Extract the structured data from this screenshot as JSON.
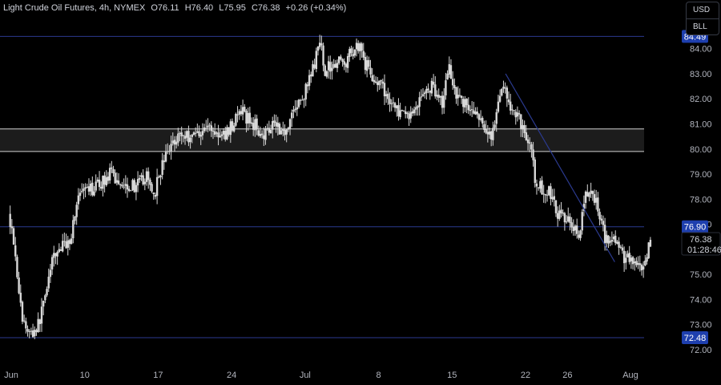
{
  "header": {
    "symbol": "Light Crude Oil Futures, 4h, NYMEX",
    "open": "O76.11",
    "high": "H76.40",
    "low": "L75.95",
    "close": "C76.38",
    "change": "+0.26 (+0.34%)"
  },
  "currency_menu": {
    "currency": "USD",
    "unit": "BLL"
  },
  "colors": {
    "background": "#000000",
    "candle": "#d8d8d8",
    "level_line": "#2b3a8f",
    "zone_border": "#d0d0d0",
    "zone_fill": "#1c1c1c",
    "label_bg": "#1e3fae",
    "axis_text": "#b2b5be"
  },
  "chart_data": {
    "type": "candlestick",
    "y_ticks": [
      "84.00",
      "83.00",
      "82.00",
      "81.00",
      "80.00",
      "79.00",
      "78.00",
      "77.00",
      "75.00",
      "74.00",
      "73.00",
      "72.00"
    ],
    "x_ticks": [
      {
        "label": "Jun",
        "day": 3
      },
      {
        "label": "10",
        "day": 10
      },
      {
        "label": "17",
        "day": 17
      },
      {
        "label": "24",
        "day": 24
      },
      {
        "label": "Jul",
        "day": 31
      },
      {
        "label": "8",
        "day": 38
      },
      {
        "label": "15",
        "day": 45
      },
      {
        "label": "22",
        "day": 52
      },
      {
        "label": "26",
        "day": 56
      },
      {
        "label": "Aug",
        "day": 62
      }
    ],
    "ylim": [
      72.0,
      84.5
    ],
    "xlim": [
      2.9,
      64.0
    ],
    "levels": [
      {
        "label": "84.49",
        "value": 84.49
      },
      {
        "label": "76.90",
        "value": 76.9
      },
      {
        "label": "72.48",
        "value": 72.48
      }
    ],
    "zone": {
      "top": 80.8,
      "bottom": 79.9
    },
    "trendline": {
      "start": {
        "day": 50.1,
        "price": 83.0
      },
      "end": {
        "day": 60.5,
        "price": 75.5
      }
    },
    "last_price": {
      "price": "76.38",
      "countdown": "01:28:46",
      "value": 76.38
    },
    "anchors": [
      [
        2.9,
        77.4
      ],
      [
        3.3,
        76.8
      ],
      [
        4.2,
        73.2
      ],
      [
        5.0,
        72.6
      ],
      [
        5.8,
        73.0
      ],
      [
        6.5,
        74.5
      ],
      [
        7.3,
        75.8
      ],
      [
        8.0,
        76.1
      ],
      [
        8.8,
        76.4
      ],
      [
        9.5,
        78.1
      ],
      [
        10.5,
        78.3
      ],
      [
        11.6,
        78.6
      ],
      [
        12.6,
        79.0
      ],
      [
        13.4,
        78.7
      ],
      [
        14.2,
        78.6
      ],
      [
        15.1,
        78.5
      ],
      [
        16.0,
        78.9
      ],
      [
        16.8,
        78.2
      ],
      [
        17.4,
        79.2
      ],
      [
        18.2,
        80.0
      ],
      [
        19.0,
        80.6
      ],
      [
        20.0,
        80.5
      ],
      [
        21.0,
        80.7
      ],
      [
        22.1,
        80.9
      ],
      [
        23.2,
        80.4
      ],
      [
        24.1,
        80.9
      ],
      [
        25.0,
        81.5
      ],
      [
        26.2,
        81.0
      ],
      [
        27.3,
        80.6
      ],
      [
        28.2,
        81.2
      ],
      [
        29.1,
        80.6
      ],
      [
        30.1,
        81.6
      ],
      [
        30.8,
        81.9
      ],
      [
        31.4,
        82.5
      ],
      [
        32.1,
        83.5
      ],
      [
        32.6,
        84.2
      ],
      [
        33.1,
        83.1
      ],
      [
        34.0,
        83.5
      ],
      [
        34.9,
        83.4
      ],
      [
        35.8,
        84.0
      ],
      [
        36.4,
        84.2
      ],
      [
        36.9,
        83.4
      ],
      [
        37.6,
        82.9
      ],
      [
        38.5,
        82.4
      ],
      [
        39.5,
        81.8
      ],
      [
        40.4,
        81.3
      ],
      [
        41.3,
        81.4
      ],
      [
        42.1,
        82.0
      ],
      [
        43.1,
        82.5
      ],
      [
        43.8,
        82.3
      ],
      [
        44.2,
        81.8
      ],
      [
        44.9,
        83.3
      ],
      [
        45.5,
        82.3
      ],
      [
        46.4,
        81.8
      ],
      [
        47.4,
        81.4
      ],
      [
        48.2,
        80.7
      ],
      [
        49.0,
        80.6
      ],
      [
        49.5,
        81.5
      ],
      [
        50.1,
        82.8
      ],
      [
        50.7,
        81.4
      ],
      [
        51.3,
        81.5
      ],
      [
        52.0,
        80.8
      ],
      [
        52.7,
        79.9
      ],
      [
        53.1,
        78.7
      ],
      [
        53.7,
        78.4
      ],
      [
        54.4,
        78.3
      ],
      [
        54.9,
        77.8
      ],
      [
        55.5,
        77.2
      ],
      [
        56.4,
        77.3
      ],
      [
        57.3,
        76.4
      ],
      [
        57.8,
        78.0
      ],
      [
        58.4,
        78.3
      ],
      [
        59.0,
        77.8
      ],
      [
        59.8,
        76.4
      ],
      [
        60.4,
        76.6
      ],
      [
        61.3,
        75.8
      ],
      [
        62.3,
        75.5
      ],
      [
        63.1,
        75.1
      ],
      [
        63.6,
        75.3
      ],
      [
        64.0,
        76.3
      ]
    ]
  }
}
